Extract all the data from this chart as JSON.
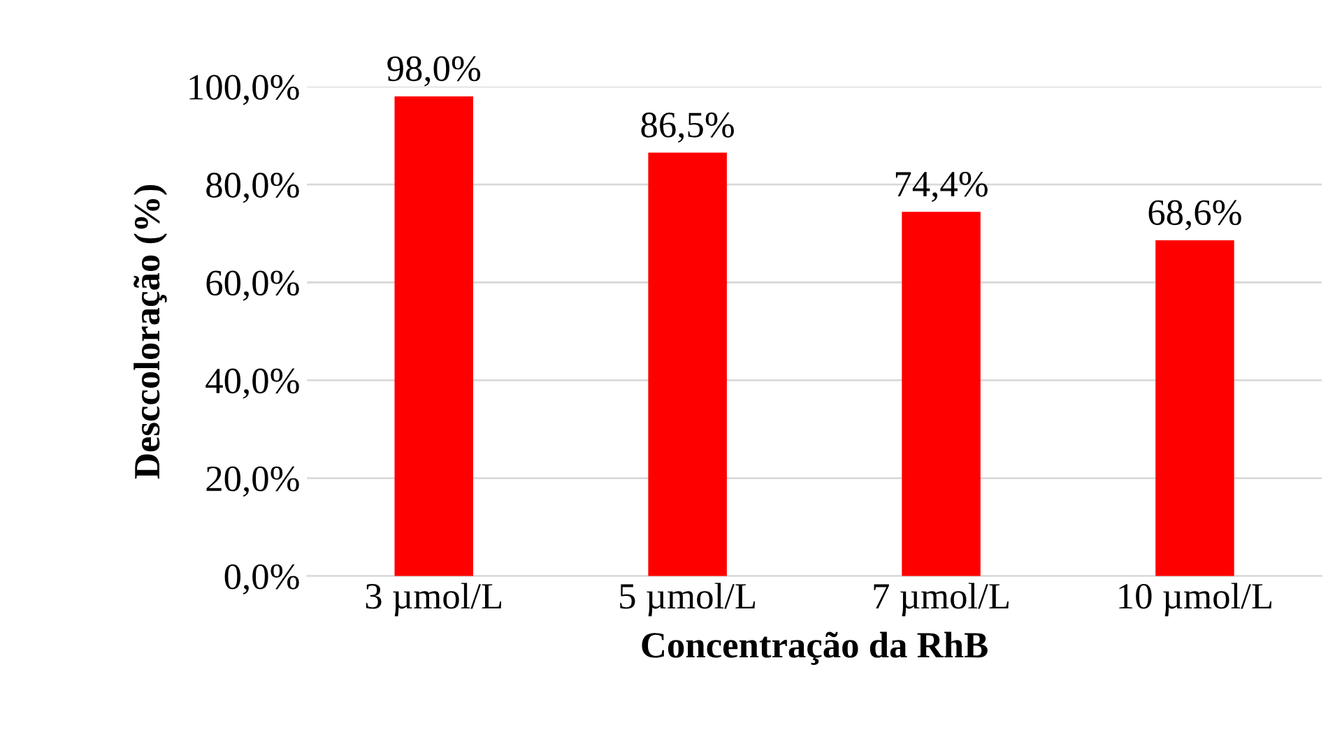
{
  "chart_data": {
    "type": "bar",
    "xlabel": "Concentração da RhB",
    "ylabel": "Desccoloração (%)",
    "categories": [
      "3 µmol/L",
      "5 µmol/L",
      "7 µmol/L",
      "10 µmol/L"
    ],
    "values": [
      98.0,
      86.5,
      74.4,
      68.6
    ],
    "value_labels": [
      "98,0%",
      "86,5%",
      "74,4%",
      "68,6%"
    ],
    "color": "#ff0000",
    "ylim": [
      0,
      100
    ],
    "yticks": [
      {
        "value": 0,
        "label": "0,0%"
      },
      {
        "value": 20,
        "label": "20,0%"
      },
      {
        "value": 40,
        "label": "40,0%"
      },
      {
        "value": 60,
        "label": "60,0%"
      },
      {
        "value": 80,
        "label": "80,0%"
      },
      {
        "value": 100,
        "label": "100,0%"
      }
    ],
    "grid": "y",
    "legend": false
  }
}
